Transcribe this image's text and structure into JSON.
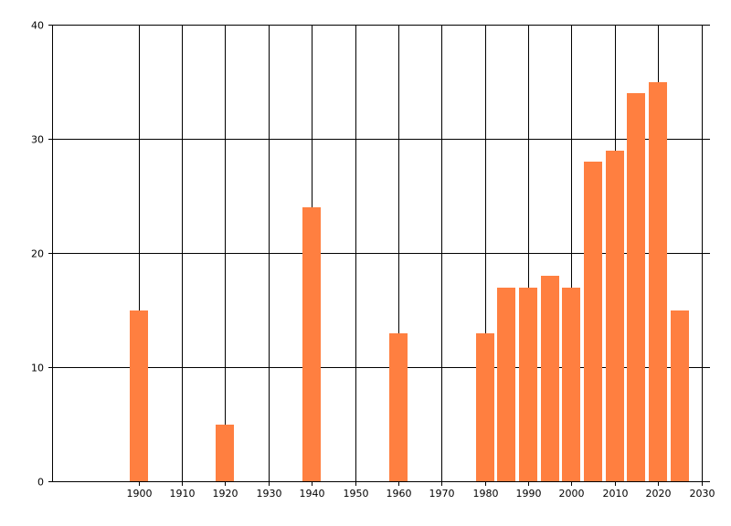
{
  "chart_data": {
    "type": "bar",
    "title": "",
    "xlabel": "",
    "ylabel": "",
    "xlim": [
      1880,
      2032
    ],
    "ylim": [
      0,
      40
    ],
    "grid": true,
    "bar_color": "#FF7F40",
    "x_ticks": [
      1900,
      1910,
      1920,
      1930,
      1940,
      1950,
      1960,
      1970,
      1980,
      1990,
      2000,
      2010,
      2020,
      2030
    ],
    "y_ticks": [
      0,
      10,
      20,
      30,
      40
    ],
    "x_tick_labels": [
      "1900",
      "1910",
      "1920",
      "1930",
      "1940",
      "1950",
      "1960",
      "1970",
      "1980",
      "1990",
      "2000",
      "2010",
      "2020",
      "2030"
    ],
    "y_tick_labels": [
      "0",
      "10",
      "20",
      "30",
      "40"
    ],
    "points": [
      {
        "x": 1900,
        "y": 15
      },
      {
        "x": 1920,
        "y": 5
      },
      {
        "x": 1940,
        "y": 24
      },
      {
        "x": 1960,
        "y": 13
      },
      {
        "x": 1980,
        "y": 13
      },
      {
        "x": 1985,
        "y": 17
      },
      {
        "x": 1990,
        "y": 17
      },
      {
        "x": 1995,
        "y": 18
      },
      {
        "x": 2000,
        "y": 17
      },
      {
        "x": 2005,
        "y": 28
      },
      {
        "x": 2010,
        "y": 29
      },
      {
        "x": 2015,
        "y": 34
      },
      {
        "x": 2020,
        "y": 35
      },
      {
        "x": 2025,
        "y": 15
      }
    ]
  }
}
